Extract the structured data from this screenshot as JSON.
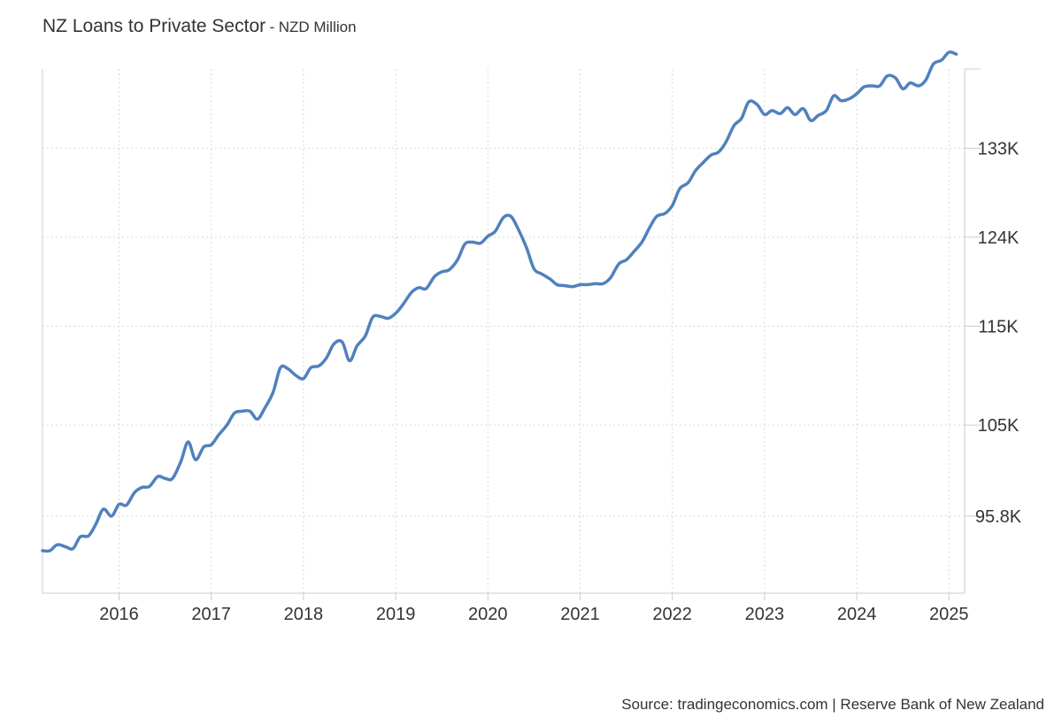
{
  "header": {
    "title": "NZ Loans to Private Sector",
    "separator": "-",
    "unit": "NZD Million"
  },
  "footer": {
    "source": "Source: tradingeconomics.com | Reserve Bank of New Zealand"
  },
  "chart_data": {
    "type": "line",
    "title": "NZ Loans to Private Sector",
    "subtitle": "NZD Million",
    "xlabel": "",
    "ylabel": "",
    "xlim": [
      2015.17,
      2025.17
    ],
    "ylim": [
      88000,
      141000
    ],
    "grid": true,
    "legend": "none",
    "y_axis_position": "right",
    "color": "#4f81bd",
    "x_ticks": [
      {
        "value": 2016,
        "label": "2016"
      },
      {
        "value": 2017,
        "label": "2017"
      },
      {
        "value": 2018,
        "label": "2018"
      },
      {
        "value": 2019,
        "label": "2019"
      },
      {
        "value": 2020,
        "label": "2020"
      },
      {
        "value": 2021,
        "label": "2021"
      },
      {
        "value": 2022,
        "label": "2022"
      },
      {
        "value": 2023,
        "label": "2023"
      },
      {
        "value": 2024,
        "label": "2024"
      },
      {
        "value": 2025,
        "label": "2025"
      }
    ],
    "y_ticks": [
      {
        "value": 95800,
        "label": "95.8K"
      },
      {
        "value": 105000,
        "label": "105K"
      },
      {
        "value": 115000,
        "label": "115K"
      },
      {
        "value": 124000,
        "label": "124K"
      },
      {
        "value": 133000,
        "label": "133K"
      }
    ],
    "series": [
      {
        "points": [
          [
            2015.17,
            92300
          ],
          [
            2015.25,
            92300
          ],
          [
            2015.33,
            92900
          ],
          [
            2015.42,
            92700
          ],
          [
            2015.5,
            92500
          ],
          [
            2015.58,
            93700
          ],
          [
            2015.67,
            93800
          ],
          [
            2015.75,
            95000
          ],
          [
            2015.83,
            96500
          ],
          [
            2015.92,
            95800
          ],
          [
            2016.0,
            97000
          ],
          [
            2016.08,
            96900
          ],
          [
            2016.17,
            98200
          ],
          [
            2016.25,
            98700
          ],
          [
            2016.33,
            98800
          ],
          [
            2016.42,
            99800
          ],
          [
            2016.5,
            99600
          ],
          [
            2016.58,
            99600
          ],
          [
            2016.67,
            101300
          ],
          [
            2016.75,
            103300
          ],
          [
            2016.83,
            101500
          ],
          [
            2016.92,
            102800
          ],
          [
            2017.0,
            103000
          ],
          [
            2017.08,
            104000
          ],
          [
            2017.17,
            105000
          ],
          [
            2017.25,
            106200
          ],
          [
            2017.33,
            106400
          ],
          [
            2017.42,
            106400
          ],
          [
            2017.5,
            105600
          ],
          [
            2017.58,
            106700
          ],
          [
            2017.67,
            108300
          ],
          [
            2017.75,
            110800
          ],
          [
            2017.83,
            110700
          ],
          [
            2017.92,
            110000
          ],
          [
            2018.0,
            109700
          ],
          [
            2018.08,
            110800
          ],
          [
            2018.17,
            111000
          ],
          [
            2018.25,
            111800
          ],
          [
            2018.33,
            113200
          ],
          [
            2018.42,
            113400
          ],
          [
            2018.5,
            111500
          ],
          [
            2018.58,
            113000
          ],
          [
            2018.67,
            114000
          ],
          [
            2018.75,
            115900
          ],
          [
            2018.83,
            116000
          ],
          [
            2018.92,
            115800
          ],
          [
            2019.0,
            116300
          ],
          [
            2019.08,
            117200
          ],
          [
            2019.17,
            118400
          ],
          [
            2019.25,
            118900
          ],
          [
            2019.33,
            118800
          ],
          [
            2019.42,
            120000
          ],
          [
            2019.5,
            120500
          ],
          [
            2019.58,
            120700
          ],
          [
            2019.67,
            121700
          ],
          [
            2019.75,
            123300
          ],
          [
            2019.83,
            123500
          ],
          [
            2019.92,
            123400
          ],
          [
            2020.0,
            124100
          ],
          [
            2020.08,
            124600
          ],
          [
            2020.17,
            126000
          ],
          [
            2020.25,
            126100
          ],
          [
            2020.33,
            124800
          ],
          [
            2020.42,
            122900
          ],
          [
            2020.5,
            120800
          ],
          [
            2020.58,
            120300
          ],
          [
            2020.67,
            119800
          ],
          [
            2020.75,
            119200
          ],
          [
            2020.83,
            119100
          ],
          [
            2020.92,
            119000
          ],
          [
            2021.0,
            119200
          ],
          [
            2021.08,
            119200
          ],
          [
            2021.17,
            119300
          ],
          [
            2021.25,
            119300
          ],
          [
            2021.33,
            119900
          ],
          [
            2021.42,
            121300
          ],
          [
            2021.5,
            121700
          ],
          [
            2021.58,
            122500
          ],
          [
            2021.67,
            123500
          ],
          [
            2021.75,
            124900
          ],
          [
            2021.83,
            126100
          ],
          [
            2021.92,
            126400
          ],
          [
            2022.0,
            127200
          ],
          [
            2022.08,
            128900
          ],
          [
            2022.17,
            129500
          ],
          [
            2022.25,
            130700
          ],
          [
            2022.33,
            131500
          ],
          [
            2022.42,
            132300
          ],
          [
            2022.5,
            132600
          ],
          [
            2022.58,
            133600
          ],
          [
            2022.67,
            135300
          ],
          [
            2022.75,
            136000
          ],
          [
            2022.83,
            137700
          ],
          [
            2022.92,
            137400
          ],
          [
            2023.0,
            136400
          ],
          [
            2023.08,
            136800
          ],
          [
            2023.17,
            136500
          ],
          [
            2023.25,
            137100
          ],
          [
            2023.33,
            136400
          ],
          [
            2023.42,
            137000
          ],
          [
            2023.5,
            135800
          ],
          [
            2023.58,
            136300
          ],
          [
            2023.67,
            136800
          ],
          [
            2023.75,
            138300
          ],
          [
            2023.83,
            137800
          ],
          [
            2023.92,
            138000
          ],
          [
            2024.0,
            138500
          ],
          [
            2024.08,
            139200
          ],
          [
            2024.17,
            139300
          ],
          [
            2024.25,
            139300
          ],
          [
            2024.33,
            140300
          ],
          [
            2024.42,
            140100
          ],
          [
            2024.5,
            139000
          ],
          [
            2024.58,
            139600
          ],
          [
            2024.67,
            139300
          ],
          [
            2024.75,
            139900
          ],
          [
            2024.83,
            141500
          ],
          [
            2024.92,
            141900
          ],
          [
            2025.0,
            142700
          ],
          [
            2025.08,
            142500
          ]
        ]
      }
    ]
  }
}
